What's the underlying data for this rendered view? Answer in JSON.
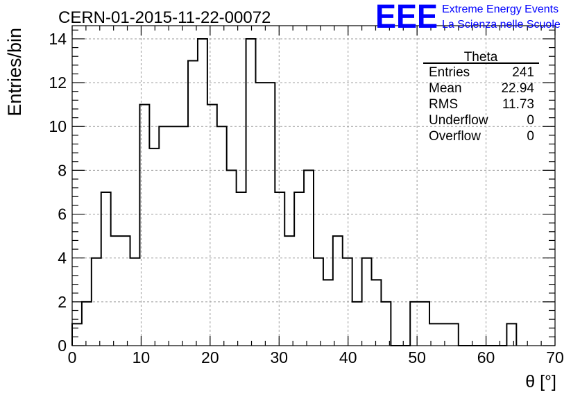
{
  "chart_data": {
    "type": "bar",
    "title": "CERN-01-2015-11-22-00072",
    "xlabel": "θ [°]",
    "ylabel": "Entries/bin",
    "xlim": [
      0,
      70
    ],
    "ylim": [
      0,
      14.6
    ],
    "x_ticks": [
      0,
      10,
      20,
      30,
      40,
      50,
      60,
      70
    ],
    "y_ticks": [
      0,
      2,
      4,
      6,
      8,
      10,
      12,
      14
    ],
    "grid": true,
    "bin_edges": [
      0,
      1.4,
      2.8,
      4.2,
      5.6,
      7,
      8.4,
      9.8,
      11.2,
      12.6,
      14,
      15.4,
      16.8,
      18.2,
      19.6,
      21,
      22.4,
      23.8,
      25.2,
      26.6,
      28,
      29.4,
      30.8,
      32.2,
      33.6,
      35,
      36.4,
      37.8,
      39.2,
      40.6,
      42,
      43.4,
      44.8,
      46.2,
      47.6,
      49,
      50.4,
      51.8,
      53.2,
      54.6,
      56,
      57.4,
      58.8,
      60.2,
      61.6,
      63,
      64.4
    ],
    "values": [
      1,
      2,
      4,
      7,
      5,
      5,
      4,
      11,
      9,
      10,
      10,
      10,
      13,
      14,
      11,
      10,
      8,
      7,
      14,
      12,
      12,
      7,
      5,
      7,
      8,
      4,
      3,
      5,
      4,
      2,
      4,
      3,
      2,
      0,
      0,
      2,
      2,
      1,
      1,
      1,
      0,
      0,
      0,
      0,
      0,
      1
    ],
    "series": [
      {
        "name": "Theta",
        "values_ref": "values"
      }
    ]
  },
  "stats_box": {
    "title": "Theta",
    "rows": [
      {
        "label": "Entries",
        "value": "241"
      },
      {
        "label": "Mean",
        "value": "22.94"
      },
      {
        "label": "RMS",
        "value": "11.73"
      },
      {
        "label": "Underflow",
        "value": "0"
      },
      {
        "label": "Overflow",
        "value": "0"
      }
    ]
  },
  "logo": {
    "mark": "EEE",
    "line1": "Extreme Energy Events",
    "line2": "La Scienza nelle Scuole",
    "color": "#0000ff"
  },
  "colors": {
    "grid": "#9a9a9a",
    "line": "#000000"
  }
}
